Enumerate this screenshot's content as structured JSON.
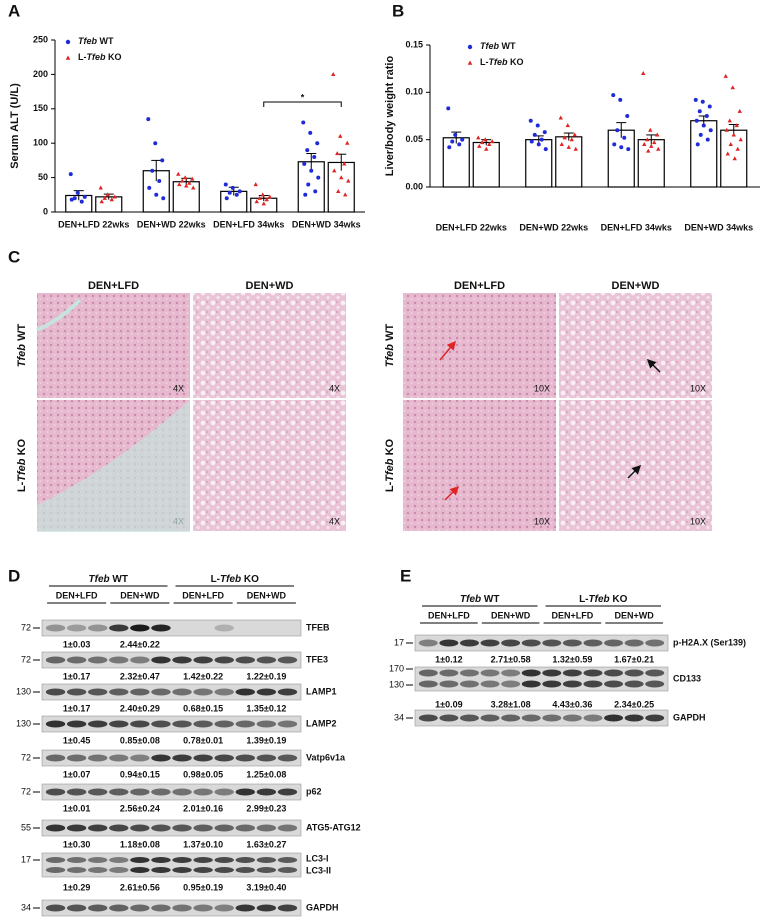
{
  "chart_data": [
    {
      "type": "bar",
      "panel_label": "A",
      "ylabel": "Serum ALT (U/L)",
      "categories": [
        "DEN+LFD 22wks",
        "DEN+WD 22wks",
        "DEN+LFD 34wks",
        "DEN+WD 34wks"
      ],
      "ylim": [
        0,
        250
      ],
      "yticks": [
        0,
        50,
        100,
        150,
        200,
        250
      ],
      "series": [
        {
          "name": "Tfeb WT",
          "color": "#1f2bd6",
          "marker": "circle",
          "values": [
            24,
            60,
            30,
            73
          ],
          "errors": [
            7,
            15,
            6,
            12
          ],
          "points": [
            [
              55,
              28,
              22,
              20,
              15,
              18
            ],
            [
              135,
              100,
              75,
              60,
              45,
              35,
              25,
              20
            ],
            [
              40,
              35,
              30,
              28,
              25,
              20
            ],
            [
              130,
              115,
              100,
              90,
              80,
              70,
              60,
              50,
              40,
              30,
              25
            ]
          ]
        },
        {
          "name": "L-Tfeb KO",
          "color": "#e02424",
          "marker": "triangle",
          "values": [
            22,
            44,
            20,
            72
          ],
          "errors": [
            4,
            5,
            4,
            12
          ],
          "points": [
            [
              35,
              25,
              22,
              20,
              18,
              15
            ],
            [
              55,
              50,
              48,
              45,
              42,
              40,
              38,
              35
            ],
            [
              40,
              25,
              22,
              20,
              18,
              15,
              12
            ],
            [
              200,
              110,
              100,
              85,
              70,
              60,
              50,
              45,
              30,
              25
            ]
          ]
        }
      ],
      "significance": {
        "label": "*"
      }
    },
    {
      "type": "bar",
      "panel_label": "B",
      "ylabel": "Liver/body weight ratio",
      "categories": [
        "DEN+LFD 22wks",
        "DEN+WD 22wks",
        "DEN+LFD 34wks",
        "DEN+WD 34wks"
      ],
      "ylim": [
        0,
        0.15
      ],
      "yticks": [
        {
          "value": 0,
          "label": "0.00"
        },
        {
          "value": 0.05,
          "label": "0.05"
        },
        {
          "value": 0.1,
          "label": "0.10"
        },
        {
          "value": 0.15,
          "label": "0.15"
        }
      ],
      "series": [
        {
          "name": "Tfeb WT",
          "color": "#1f2bd6",
          "marker": "circle",
          "values": [
            0.052,
            0.05,
            0.06,
            0.07
          ],
          "errors": [
            0.006,
            0.004,
            0.008,
            0.005
          ],
          "points": [
            [
              0.083,
              0.055,
              0.05,
              0.048,
              0.045,
              0.042
            ],
            [
              0.07,
              0.065,
              0.058,
              0.055,
              0.05,
              0.048,
              0.045,
              0.04
            ],
            [
              0.097,
              0.092,
              0.075,
              0.06,
              0.052,
              0.045,
              0.042,
              0.04
            ],
            [
              0.092,
              0.09,
              0.085,
              0.08,
              0.075,
              0.07,
              0.065,
              0.06,
              0.055,
              0.05,
              0.045
            ]
          ]
        },
        {
          "name": "L-Tfeb KO",
          "color": "#e02424",
          "marker": "triangle",
          "values": [
            0.047,
            0.053,
            0.05,
            0.06
          ],
          "errors": [
            0.003,
            0.004,
            0.005,
            0.006
          ],
          "points": [
            [
              0.052,
              0.05,
              0.048,
              0.047,
              0.045,
              0.043,
              0.04
            ],
            [
              0.073,
              0.065,
              0.055,
              0.052,
              0.05,
              0.045,
              0.042,
              0.04
            ],
            [
              0.12,
              0.06,
              0.055,
              0.05,
              0.047,
              0.045,
              0.043,
              0.04,
              0.038
            ],
            [
              0.117,
              0.105,
              0.08,
              0.07,
              0.065,
              0.06,
              0.055,
              0.05,
              0.045,
              0.04,
              0.035,
              0.03
            ]
          ]
        }
      ]
    }
  ],
  "panel_c": {
    "label": "C",
    "left": {
      "columns": [
        "DEN+LFD",
        "DEN+WD"
      ],
      "rows": [
        "Tfeb WT",
        "L-Tfeb KO"
      ],
      "magnifications": [
        "4X",
        "4X",
        "4X",
        "4X"
      ]
    },
    "right": {
      "columns": [
        "DEN+LFD",
        "DEN+WD"
      ],
      "rows": [
        "Tfeb WT",
        "L-Tfeb KO"
      ],
      "magnifications": [
        "10X",
        "10X",
        "10X",
        "10X"
      ]
    }
  },
  "panel_d": {
    "label": "D",
    "groups": [
      "Tfeb WT",
      "L-Tfeb KO"
    ],
    "conditions": [
      "DEN+LFD",
      "DEN+WD",
      "DEN+LFD",
      "DEN+WD"
    ],
    "blots": [
      {
        "markers": [
          72
        ],
        "proteins": [
          "TFEB"
        ],
        "quant": [
          "1±0.03",
          "2.44±0.22"
        ]
      },
      {
        "markers": [
          72
        ],
        "proteins": [
          "TFE3"
        ],
        "quant": [
          "1±0.17",
          "2.32±0.47",
          "1.42±0.22",
          "1.22±0.19"
        ]
      },
      {
        "markers": [
          130
        ],
        "proteins": [
          "LAMP1"
        ],
        "quant": [
          "1±0.17",
          "2.40±0.29",
          "0.68±0.15",
          "1.35±0.12"
        ]
      },
      {
        "markers": [
          130
        ],
        "proteins": [
          "LAMP2"
        ],
        "quant": [
          "1±0.45",
          "0.85±0.08",
          "0.78±0.01",
          "1.39±0.19"
        ]
      },
      {
        "markers": [
          72
        ],
        "proteins": [
          "Vatp6v1a"
        ],
        "quant": [
          "1±0.07",
          "0.94±0.15",
          "0.98±0.05",
          "1.25±0.08"
        ]
      },
      {
        "markers": [
          72
        ],
        "proteins": [
          "p62"
        ],
        "quant": [
          "1±0.01",
          "2.56±0.24",
          "2.01±0.16",
          "2.99±0.23"
        ]
      },
      {
        "markers": [
          55
        ],
        "proteins": [
          "ATG5-ATG12"
        ],
        "quant": [
          "1±0.30",
          "1.18±0.08",
          "1.37±0.10",
          "1.63±0.27"
        ]
      },
      {
        "markers": [
          17
        ],
        "proteins": [
          "LC3-I",
          "LC3-II"
        ],
        "quant": [
          "1±0.29",
          "2.61±0.56",
          "0.95±0.19",
          "3.19±0.40"
        ]
      },
      {
        "markers": [
          34
        ],
        "proteins": [
          "GAPDH"
        ]
      }
    ]
  },
  "panel_e": {
    "label": "E",
    "groups": [
      "Tfeb WT",
      "L-Tfeb KO"
    ],
    "conditions": [
      "DEN+LFD",
      "DEN+WD",
      "DEN+LFD",
      "DEN+WD"
    ],
    "blots": [
      {
        "markers": [
          17
        ],
        "proteins": [
          "p-H2A.X (Ser139)"
        ],
        "quant": [
          "1±0.12",
          "2.71±0.58",
          "1.32±0.59",
          "1.67±0.21"
        ]
      },
      {
        "markers": [
          170,
          130
        ],
        "proteins": [
          "CD133"
        ],
        "quant": [
          "1±0.09",
          "3.28±1.08",
          "4.43±0.36",
          "2.34±0.25"
        ]
      },
      {
        "markers": [
          34
        ],
        "proteins": [
          "GAPDH"
        ]
      }
    ]
  }
}
